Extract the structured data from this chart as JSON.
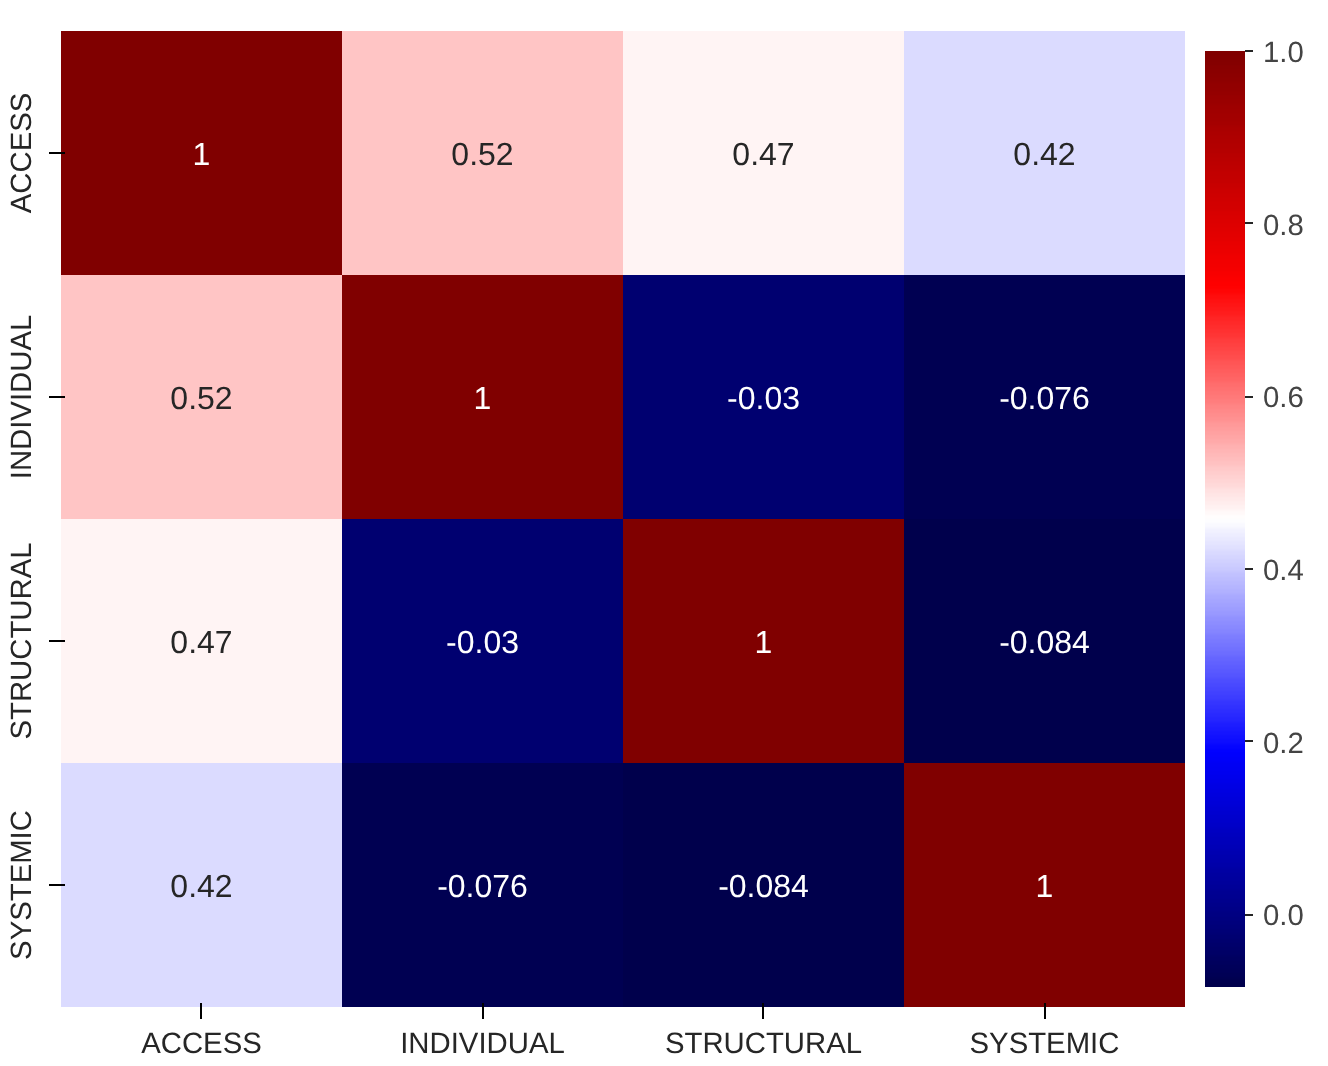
{
  "chart_data": {
    "type": "heatmap",
    "categories": [
      "ACCESS",
      "INDIVIDUAL",
      "STRUCTURAL",
      "SYSTEMIC"
    ],
    "y_categories": [
      "ACCESS",
      "INDIVIDUAL",
      "STRUCTURAL",
      "SYSTEMIC"
    ],
    "cells": [
      [
        1,
        0.52,
        0.47,
        0.42
      ],
      [
        0.52,
        1,
        -0.03,
        -0.076
      ],
      [
        0.47,
        -0.03,
        1,
        -0.084
      ],
      [
        0.42,
        -0.076,
        -0.084,
        1
      ]
    ],
    "data_labels": true,
    "clim": [
      -0.084,
      1
    ],
    "cticks": [
      {
        "value": 0,
        "label": "0.0"
      },
      0.2,
      0.4,
      0.6,
      0.8,
      {
        "value": 1,
        "label": "1.0"
      }
    ]
  }
}
